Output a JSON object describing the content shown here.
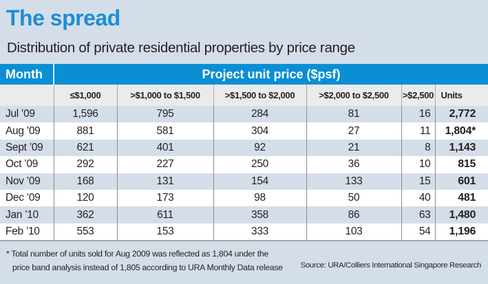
{
  "title": "The spread",
  "subtitle": "Distribution of private residential properties by price range",
  "table": {
    "month_header": "Month",
    "group_header": "Project unit price ($psf)",
    "columns": [
      "≤$1,000",
      ">$1,000 to $1,500",
      ">$1,500 to $2,000",
      ">$2,000 to $2,500",
      ">$2,500",
      "Units"
    ],
    "rows": [
      {
        "month": "Jul ’09",
        "values": [
          "1,596",
          "795",
          "284",
          "81",
          "16"
        ],
        "units": "2,772"
      },
      {
        "month": "Aug ’09",
        "values": [
          "881",
          "581",
          "304",
          "27",
          "11"
        ],
        "units": "1,804*"
      },
      {
        "month": "Sept ’09",
        "values": [
          "621",
          "401",
          "92",
          "21",
          "8"
        ],
        "units": "1,143"
      },
      {
        "month": "Oct ’09",
        "values": [
          "292",
          "227",
          "250",
          "36",
          "10"
        ],
        "units": "815"
      },
      {
        "month": "Nov ’09",
        "values": [
          "168",
          "131",
          "154",
          "133",
          "15"
        ],
        "units": "601"
      },
      {
        "month": "Dec ’09",
        "values": [
          "120",
          "173",
          "98",
          "50",
          "40"
        ],
        "units": "481"
      },
      {
        "month": "Jan ’10",
        "values": [
          "362",
          "611",
          "358",
          "86",
          "63"
        ],
        "units": "1,480"
      },
      {
        "month": "Feb ’10",
        "values": [
          "553",
          "153",
          "333",
          "103",
          "54"
        ],
        "units": "1,196"
      }
    ]
  },
  "footnote_line1": "* Total number of units sold for Aug 2009 was reflected as 1,804 under the",
  "footnote_line2": "price band analysis instead of 1,805 according to URA Monthly Data release",
  "source": "Source:  URA/Colliers International Singapore  Research",
  "colors": {
    "accent": "#0a8fd3",
    "background": "#d4dee9",
    "subheader": "#ebebeb"
  }
}
